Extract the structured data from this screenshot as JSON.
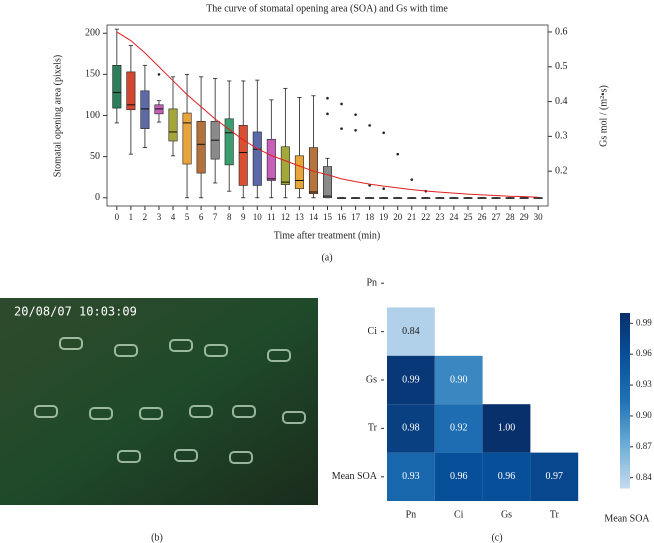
{
  "panel_labels": [
    "(a)",
    "(b)",
    "(c)"
  ],
  "photo": {
    "timestamp": "20/08/07 10:03:09"
  },
  "chart_data": [
    {
      "type": "box",
      "title": "The curve of stomatal opening area (SOA) and Gs with time",
      "x_label": "Time after treatment (min)",
      "y_label": "Stomatal opening area (pixels)",
      "y2_label": "Gs mol / (m²•s)",
      "x": [
        0,
        1,
        2,
        3,
        4,
        5,
        6,
        7,
        8,
        9,
        10,
        11,
        12,
        13,
        14,
        15,
        16,
        17,
        18,
        19,
        20,
        21,
        22,
        23,
        24,
        25,
        26,
        27,
        28,
        29,
        30
      ],
      "xlim": [
        -0.7,
        30.7
      ],
      "xticks": [
        0,
        1,
        2,
        3,
        4,
        5,
        6,
        7,
        8,
        9,
        10,
        11,
        12,
        13,
        14,
        15,
        16,
        17,
        18,
        19,
        20,
        21,
        22,
        23,
        24,
        25,
        26,
        27,
        28,
        29,
        30
      ],
      "ylim": [
        -10,
        210
      ],
      "yticks": [
        0,
        50,
        100,
        150,
        200
      ],
      "y2lim": [
        0.1,
        0.62
      ],
      "y2ticks": [
        0.2,
        0.3,
        0.4,
        0.5,
        0.6
      ],
      "boxes": [
        {
          "x": 0,
          "whislo": 91,
          "q1": 109,
          "med": 128,
          "q3": 161,
          "whishi": 205,
          "color": "#2e7d5b"
        },
        {
          "x": 1,
          "whislo": 53,
          "q1": 107,
          "med": 113,
          "q3": 153,
          "whishi": 185,
          "color": "#d2472f"
        },
        {
          "x": 2,
          "whislo": 61,
          "q1": 84,
          "med": 108,
          "q3": 130,
          "whishi": 161,
          "color": "#5d6aa6"
        },
        {
          "x": 3,
          "whislo": 92,
          "q1": 102,
          "med": 108,
          "q3": 113,
          "whishi": 118,
          "color": "#c65db6"
        },
        {
          "x": 4,
          "whislo": 51,
          "q1": 69,
          "med": 80,
          "q3": 108,
          "whishi": 147,
          "color": "#a5a63a"
        },
        {
          "x": 5,
          "whislo": 0,
          "q1": 41,
          "med": 91,
          "q3": 103,
          "whishi": 150,
          "color": "#e8a33b"
        },
        {
          "x": 6,
          "whislo": 0,
          "q1": 30,
          "med": 65,
          "q3": 93,
          "whishi": 147,
          "color": "#b5713c"
        },
        {
          "x": 7,
          "whislo": 18,
          "q1": 47,
          "med": 70,
          "q3": 93,
          "whishi": 145,
          "color": "#8a8a8a"
        },
        {
          "x": 8,
          "whislo": 8,
          "q1": 40,
          "med": 79,
          "q3": 96,
          "whishi": 142,
          "color": "#3a9e6e"
        },
        {
          "x": 9,
          "whislo": 0,
          "q1": 15,
          "med": 55,
          "q3": 88,
          "whishi": 142,
          "color": "#d95032"
        },
        {
          "x": 10,
          "whislo": 0,
          "q1": 15,
          "med": 59,
          "q3": 80,
          "whishi": 143,
          "color": "#5a6aa8"
        },
        {
          "x": 11,
          "whislo": 0,
          "q1": 21,
          "med": 23,
          "q3": 71,
          "whishi": 119,
          "color": "#c660b9"
        },
        {
          "x": 12,
          "whislo": 0,
          "q1": 16,
          "med": 19,
          "q3": 62,
          "whishi": 133,
          "color": "#a2a83a"
        },
        {
          "x": 13,
          "whislo": 0,
          "q1": 11,
          "med": 21,
          "q3": 51,
          "whishi": 122,
          "color": "#e8a53a"
        },
        {
          "x": 14,
          "whislo": 0,
          "q1": 5,
          "med": 7,
          "q3": 61,
          "whishi": 124,
          "color": "#b5733e"
        },
        {
          "x": 15,
          "whislo": 0,
          "q1": 0,
          "med": 2,
          "q3": 38,
          "whishi": 48,
          "color": "#8a8a8a"
        },
        {
          "x": 16,
          "whislo": 0,
          "q1": 0,
          "med": 0,
          "q3": 0,
          "whishi": 0,
          "color": "#555555"
        },
        {
          "x": 17,
          "whislo": 0,
          "q1": 0,
          "med": 0,
          "q3": 0,
          "whishi": 0,
          "color": "#555555"
        },
        {
          "x": 18,
          "whislo": 0,
          "q1": 0,
          "med": 0,
          "q3": 0,
          "whishi": 0,
          "color": "#555555"
        },
        {
          "x": 19,
          "whislo": 0,
          "q1": 0,
          "med": 0,
          "q3": 0,
          "whishi": 0,
          "color": "#555555"
        },
        {
          "x": 20,
          "whislo": 0,
          "q1": 0,
          "med": 0,
          "q3": 0,
          "whishi": 0,
          "color": "#555555"
        },
        {
          "x": 21,
          "whislo": 0,
          "q1": 0,
          "med": 0,
          "q3": 0,
          "whishi": 0,
          "color": "#555555"
        },
        {
          "x": 22,
          "whislo": 0,
          "q1": 0,
          "med": 0,
          "q3": 0,
          "whishi": 0,
          "color": "#555555"
        },
        {
          "x": 23,
          "whislo": 0,
          "q1": 0,
          "med": 0,
          "q3": 0,
          "whishi": 0,
          "color": "#555555"
        },
        {
          "x": 24,
          "whislo": 0,
          "q1": 0,
          "med": 0,
          "q3": 0,
          "whishi": 0,
          "color": "#555555"
        },
        {
          "x": 25,
          "whislo": 0,
          "q1": 0,
          "med": 0,
          "q3": 0,
          "whishi": 0,
          "color": "#555555"
        },
        {
          "x": 26,
          "whislo": 0,
          "q1": 0,
          "med": 0,
          "q3": 0,
          "whishi": 0,
          "color": "#555555"
        },
        {
          "x": 27,
          "whislo": 0,
          "q1": 0,
          "med": 0,
          "q3": 0,
          "whishi": 0,
          "color": "#555555"
        },
        {
          "x": 28,
          "whislo": 0,
          "q1": 0,
          "med": 0,
          "q3": 0,
          "whishi": 0,
          "color": "#555555"
        },
        {
          "x": 29,
          "whislo": 0,
          "q1": 0,
          "med": 0,
          "q3": 0,
          "whishi": 0,
          "color": "#555555"
        },
        {
          "x": 30,
          "whislo": 0,
          "q1": 0,
          "med": 0,
          "q3": 0,
          "whishi": 0,
          "color": "#555555"
        }
      ],
      "outliers": {
        "x": [
          3,
          15,
          15,
          16,
          16,
          17,
          17,
          18,
          18,
          19,
          19,
          20,
          21,
          22
        ],
        "values": [
          150,
          121,
          102,
          114,
          84,
          101,
          82,
          88,
          15,
          79,
          11,
          53,
          22,
          8
        ]
      },
      "series": [
        {
          "color": "#e02020",
          "axis": "y2",
          "values": [
            0.6,
            0.575,
            0.54,
            0.5,
            0.46,
            0.42,
            0.385,
            0.35,
            0.32,
            0.29,
            0.265,
            0.245,
            0.23,
            0.215,
            0.2,
            0.19,
            0.178,
            0.17,
            0.163,
            0.157,
            0.152,
            0.147,
            0.143,
            0.14,
            0.137,
            0.134,
            0.132,
            0.13,
            0.128,
            0.127,
            0.125
          ]
        }
      ]
    },
    {
      "type": "heatmap",
      "rows": [
        "Pn",
        "Ci",
        "Gs",
        "Tr",
        "Mean SOA"
      ],
      "columns": [
        "Pn",
        "Ci",
        "Gs",
        "Tr"
      ],
      "values": [
        [],
        [
          0.84
        ],
        [
          0.99,
          0.9
        ],
        [
          0.98,
          0.92,
          1.0
        ],
        [
          0.93,
          0.96,
          0.96,
          0.97
        ]
      ],
      "value_labels": [
        [],
        [
          "0.84"
        ],
        [
          "0.99",
          "0.90"
        ],
        [
          "0.98",
          "0.92",
          "1.00"
        ],
        [
          "0.93",
          "0.96",
          "0.96",
          "0.97"
        ]
      ],
      "clim": [
        0.83,
        1.0
      ],
      "cticks": [
        0.84,
        0.87,
        {
          "value": 0.9,
          "label": "0.90"
        },
        0.93,
        0.96,
        0.99
      ],
      "colorbar_label": "Mean SOA",
      "cmap": [
        "#c6dbef",
        "#6baed6",
        "#2171b5",
        "#08519c",
        "#08306b"
      ]
    }
  ]
}
